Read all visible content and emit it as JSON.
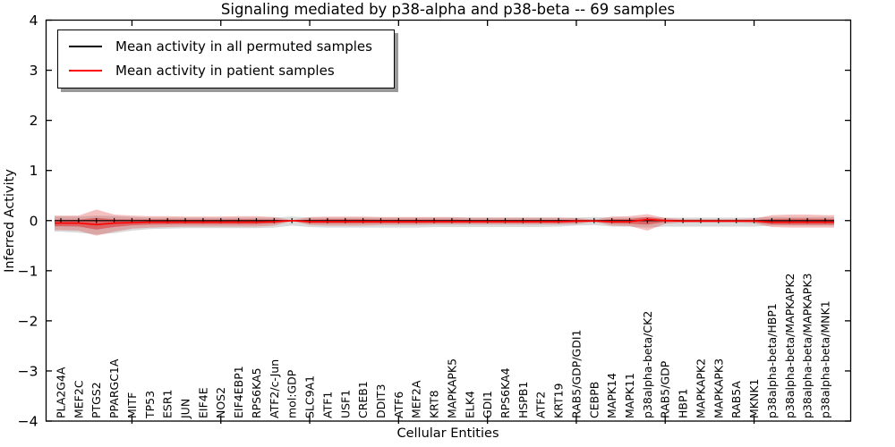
{
  "chart_data": {
    "type": "area",
    "title": "Signaling mediated by p38-alpha and p38-beta -- 69 samples",
    "xlabel": "Cellular Entities",
    "ylabel": "Inferred Activity",
    "ylim": [
      -4,
      4
    ],
    "yticks": [
      4,
      3,
      2,
      1,
      0,
      -1,
      -2,
      -3,
      -4
    ],
    "grid": false,
    "legend": {
      "position": "upper left",
      "entries": [
        {
          "label": "Mean activity in all permuted samples",
          "color": "#000000"
        },
        {
          "label": "Mean activity in patient samples",
          "color": "#ff0000"
        }
      ]
    },
    "categories": [
      "PLA2G4A",
      "MEF2C",
      "PTGS2",
      "PPARGC1A",
      "MITF",
      "TP53",
      "ESR1",
      "JUN",
      "EIF4E",
      "NOS2",
      "EIF4EBP1",
      "RPS6KA5",
      "ATF2/c-Jun",
      "mol:GDP",
      "SLC9A1",
      "ATF1",
      "USF1",
      "CREB1",
      "DDIT3",
      "ATF6",
      "MEF2A",
      "KRT8",
      "MAPKAPK5",
      "ELK4",
      "GDI1",
      "RPS6KA4",
      "HSPB1",
      "ATF2",
      "KRT19",
      "RAB5/GDP/GDI1",
      "CEBPB",
      "MAPK14",
      "MAPK11",
      "p38alpha-beta/CK2",
      "RAB5/GDP",
      "HBP1",
      "MAPKAPK2",
      "MAPKAPK3",
      "RAB5A",
      "MKNK1",
      "p38alpha-beta/HBP1",
      "p38alpha-beta/MAPKAPK2",
      "p38alpha-beta/MAPKAPK3",
      "p38alpha-beta/MNK1"
    ],
    "series": [
      {
        "name": "Mean activity in all permuted samples",
        "color": "#000000",
        "style": "line-with-tick-markers",
        "values": [
          0,
          0,
          0,
          0,
          0,
          0,
          0,
          0,
          0,
          0,
          0,
          0,
          0,
          0,
          0,
          0,
          0,
          0,
          0,
          0,
          0,
          0,
          0,
          0,
          0,
          0,
          0,
          0,
          0,
          0,
          0,
          0,
          0,
          0,
          0,
          0,
          0,
          0,
          0,
          0,
          0,
          0,
          0,
          0
        ]
      },
      {
        "name": "Mean activity in patient samples",
        "color": "#ff0000",
        "style": "line",
        "values": [
          -0.05,
          -0.05,
          -0.08,
          -0.05,
          -0.04,
          -0.03,
          -0.03,
          -0.03,
          -0.03,
          -0.03,
          -0.03,
          -0.03,
          -0.02,
          0,
          -0.02,
          -0.02,
          -0.02,
          -0.02,
          -0.02,
          -0.02,
          -0.02,
          -0.02,
          -0.02,
          -0.02,
          -0.02,
          -0.02,
          -0.02,
          -0.02,
          -0.02,
          -0.01,
          -0.01,
          -0.02,
          -0.02,
          0.02,
          0,
          -0.01,
          -0.01,
          -0.01,
          -0.01,
          -0.01,
          -0.03,
          -0.03,
          -0.03,
          -0.03
        ]
      }
    ],
    "bands": [
      {
        "name": "permuted-activity-range-band",
        "color": "#8c8c8c",
        "opacity": 0.32,
        "upper": [
          0.08,
          0.08,
          0.1,
          0.09,
          0.07,
          0.06,
          0.06,
          0.06,
          0.06,
          0.06,
          0.06,
          0.06,
          0.06,
          0.08,
          0.06,
          0.06,
          0.06,
          0.06,
          0.06,
          0.06,
          0.06,
          0.06,
          0.06,
          0.06,
          0.06,
          0.06,
          0.06,
          0.06,
          0.06,
          0.06,
          0.07,
          0.06,
          0.06,
          0.07,
          0.06,
          0.06,
          0.06,
          0.06,
          0.06,
          0.06,
          0.07,
          0.07,
          0.07,
          0.07
        ],
        "lower": [
          -0.22,
          -0.24,
          -0.28,
          -0.25,
          -0.2,
          -0.17,
          -0.16,
          -0.15,
          -0.15,
          -0.15,
          -0.15,
          -0.15,
          -0.14,
          -0.1,
          -0.13,
          -0.14,
          -0.14,
          -0.14,
          -0.14,
          -0.14,
          -0.14,
          -0.13,
          -0.13,
          -0.13,
          -0.13,
          -0.13,
          -0.13,
          -0.13,
          -0.12,
          -0.1,
          -0.09,
          -0.12,
          -0.12,
          -0.14,
          -0.12,
          -0.12,
          -0.12,
          -0.12,
          -0.12,
          -0.12,
          -0.1,
          -0.1,
          -0.1,
          -0.1
        ]
      },
      {
        "name": "patient-std-outer-band",
        "color": "#dc2d2d",
        "opacity": 0.3,
        "upper": [
          0.1,
          0.1,
          0.22,
          0.12,
          0.1,
          0.09,
          0.09,
          0.08,
          0.08,
          0.08,
          0.09,
          0.09,
          0.07,
          0.01,
          0.07,
          0.08,
          0.08,
          0.08,
          0.07,
          0.07,
          0.07,
          0.07,
          0.07,
          0.06,
          0.06,
          0.06,
          0.06,
          0.06,
          0.06,
          0.05,
          0.02,
          0.08,
          0.09,
          0.13,
          0.05,
          0.03,
          0.03,
          0.03,
          0.03,
          0.04,
          0.11,
          0.12,
          0.12,
          0.11
        ],
        "lower": [
          -0.19,
          -0.2,
          -0.3,
          -0.22,
          -0.16,
          -0.14,
          -0.13,
          -0.12,
          -0.12,
          -0.12,
          -0.12,
          -0.12,
          -0.1,
          -0.01,
          -0.09,
          -0.1,
          -0.1,
          -0.1,
          -0.09,
          -0.09,
          -0.09,
          -0.08,
          -0.08,
          -0.08,
          -0.08,
          -0.08,
          -0.08,
          -0.08,
          -0.08,
          -0.07,
          -0.02,
          -0.1,
          -0.11,
          -0.2,
          -0.06,
          -0.04,
          -0.04,
          -0.04,
          -0.04,
          -0.05,
          -0.13,
          -0.14,
          -0.14,
          -0.14
        ]
      },
      {
        "name": "patient-std-inner-band",
        "color": "#dc2d2d",
        "opacity": 0.55,
        "upper": [
          0.018,
          0.018,
          0.055,
          0.027,
          0.023,
          0.024,
          0.024,
          0.02,
          0.02,
          0.02,
          0.024,
          0.024,
          0.021,
          0.005,
          0.021,
          0.025,
          0.025,
          0.025,
          0.021,
          0.021,
          0.021,
          0.021,
          0.021,
          0.016,
          0.016,
          0.016,
          0.016,
          0.016,
          0.016,
          0.017,
          0.004,
          0.025,
          0.03,
          0.07,
          0.023,
          0.008,
          0.008,
          0.008,
          0.008,
          0.013,
          0.033,
          0.038,
          0.038,
          0.033
        ],
        "lower": [
          -0.113,
          -0.118,
          -0.179,
          -0.127,
          -0.094,
          -0.08,
          -0.075,
          -0.071,
          -0.071,
          -0.071,
          -0.071,
          -0.071,
          -0.056,
          -0.005,
          -0.052,
          -0.056,
          -0.056,
          -0.056,
          -0.052,
          -0.052,
          -0.052,
          -0.047,
          -0.047,
          -0.047,
          -0.047,
          -0.047,
          -0.047,
          -0.047,
          -0.047,
          -0.037,
          -0.015,
          -0.056,
          -0.061,
          -0.079,
          -0.027,
          -0.024,
          -0.024,
          -0.024,
          -0.024,
          -0.028,
          -0.075,
          -0.08,
          -0.08,
          -0.08
        ]
      }
    ]
  }
}
